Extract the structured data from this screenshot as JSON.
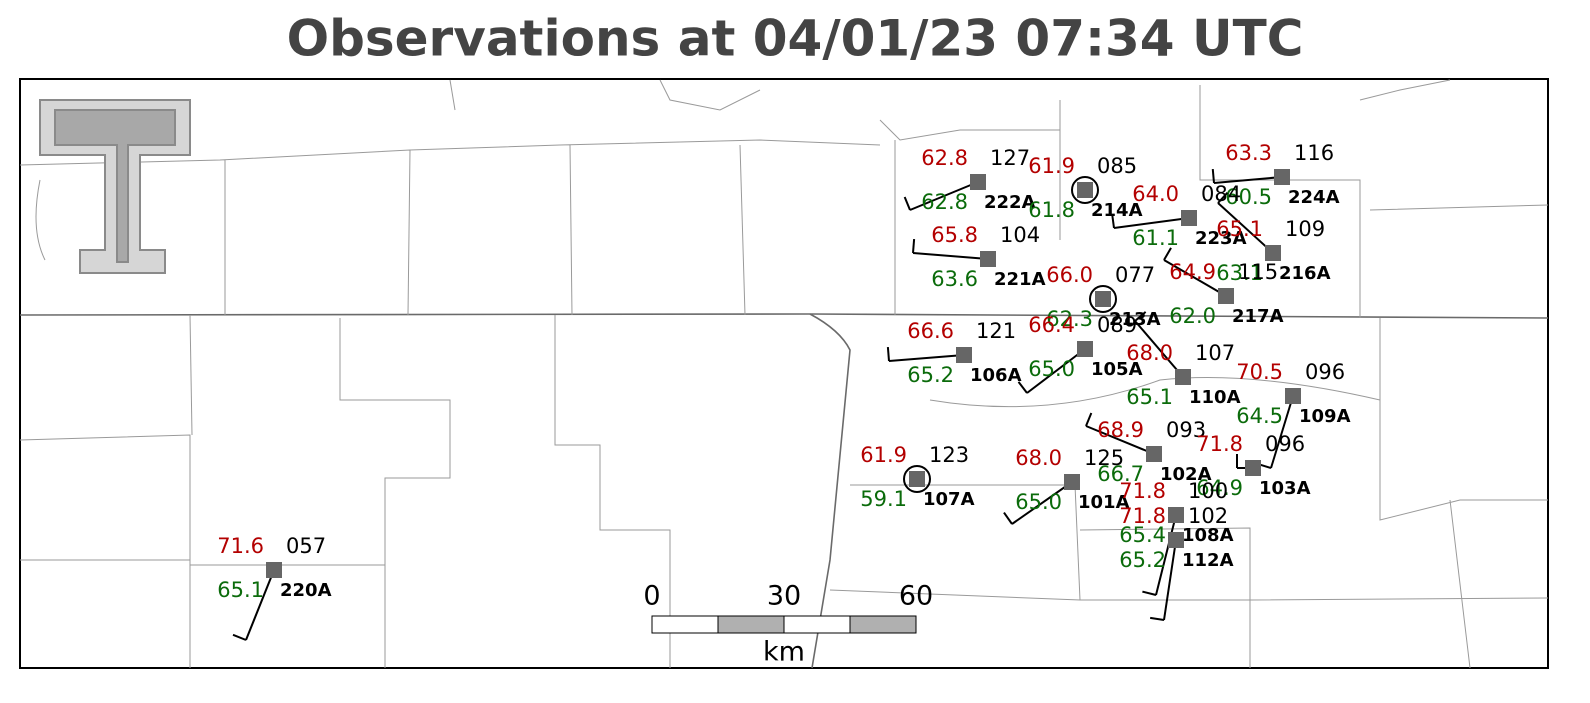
{
  "title": "Observations at 04/01/23 07:34 UTC",
  "stations": [
    {
      "id": "222A",
      "temperature": "62.8",
      "dewpoint": "62.8",
      "pressure": "127"
    },
    {
      "id": "214A",
      "temperature": "61.9",
      "dewpoint": "61.8",
      "pressure": "085"
    },
    {
      "id": "224A",
      "temperature": "63.3",
      "dewpoint": "60.5",
      "pressure": "116"
    },
    {
      "id": "223A",
      "temperature": "64.0",
      "dewpoint": "61.1",
      "pressure": "084"
    },
    {
      "id": "216A",
      "temperature": "65.1",
      "dewpoint": "63.1",
      "pressure": "109"
    },
    {
      "id": "221A",
      "temperature": "65.8",
      "dewpoint": "63.6",
      "pressure": "104"
    },
    {
      "id": "217A",
      "temperature": "64.9",
      "dewpoint": "62.0",
      "pressure": "115"
    },
    {
      "id": "213A",
      "temperature": "66.0",
      "dewpoint": "62.3",
      "pressure": "077"
    },
    {
      "id": "106A",
      "temperature": "66.6",
      "dewpoint": "65.2",
      "pressure": "121"
    },
    {
      "id": "105A",
      "temperature": "66.4",
      "dewpoint": "65.0",
      "pressure": "089"
    },
    {
      "id": "110A",
      "temperature": "68.0",
      "dewpoint": "65.1",
      "pressure": "107"
    },
    {
      "id": "109A",
      "temperature": "70.5",
      "dewpoint": "64.5",
      "pressure": "096"
    },
    {
      "id": "102A",
      "temperature": "68.9",
      "dewpoint": "66.7",
      "pressure": "093"
    },
    {
      "id": "103A",
      "temperature": "71.8",
      "dewpoint": "64.9",
      "pressure": "096"
    },
    {
      "id": "101A",
      "temperature": "68.0",
      "dewpoint": "65.0",
      "pressure": "125"
    },
    {
      "id": "107A",
      "temperature": "61.9",
      "dewpoint": "59.1",
      "pressure": "123"
    },
    {
      "id": "220A",
      "temperature": "71.6",
      "dewpoint": "65.1",
      "pressure": "057"
    },
    {
      "id": "108A",
      "temperature": "71.8",
      "dewpoint": "65.4",
      "pressure": "100"
    },
    {
      "id": "112A",
      "temperature": "71.8",
      "dewpoint": "65.2",
      "pressure": "102"
    }
  ],
  "scale_bar": {
    "ticks": [
      "0",
      "30",
      "60"
    ],
    "unit": "km"
  }
}
